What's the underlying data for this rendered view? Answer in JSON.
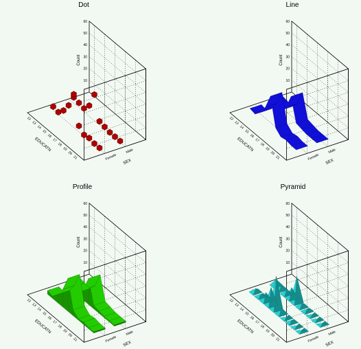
{
  "panels": [
    {
      "title": "Dot",
      "type": "dot",
      "color": "#b00000",
      "stroke": "#600000"
    },
    {
      "title": "Line",
      "type": "line",
      "color": "#1010d8",
      "stroke": "#000080"
    },
    {
      "title": "Profile",
      "type": "profile",
      "color": "#22cc00",
      "stroke": "#107000"
    },
    {
      "title": "Pyramid",
      "type": "pyramid",
      "color": "#20c8c8",
      "stroke": "#107070"
    }
  ],
  "axes": {
    "zlabel": "Count",
    "xlabel": "EDUCATN",
    "ylabel": "SEX",
    "zticks": [
      "10",
      "20",
      "30",
      "40",
      "50",
      "60"
    ],
    "xticks": [
      "12",
      "13",
      "14",
      "15",
      "16",
      "17",
      "18",
      "19",
      "20",
      "21"
    ],
    "yticks": [
      "Female",
      "Male"
    ]
  },
  "chart_data": {
    "type": "bar",
    "categories_x": [
      "12",
      "13",
      "14",
      "15",
      "16",
      "17",
      "18",
      "19",
      "20",
      "21"
    ],
    "categories_y": [
      "Female",
      "Male"
    ],
    "series": [
      {
        "name": "Female",
        "values": [
          3,
          2,
          7,
          15,
          28,
          5,
          1,
          2,
          1,
          1
        ]
      },
      {
        "name": "Male",
        "values": [
          5,
          4,
          3,
          9,
          22,
          3,
          2,
          1,
          1,
          1
        ]
      }
    ],
    "zlim": [
      0,
      60
    ]
  }
}
